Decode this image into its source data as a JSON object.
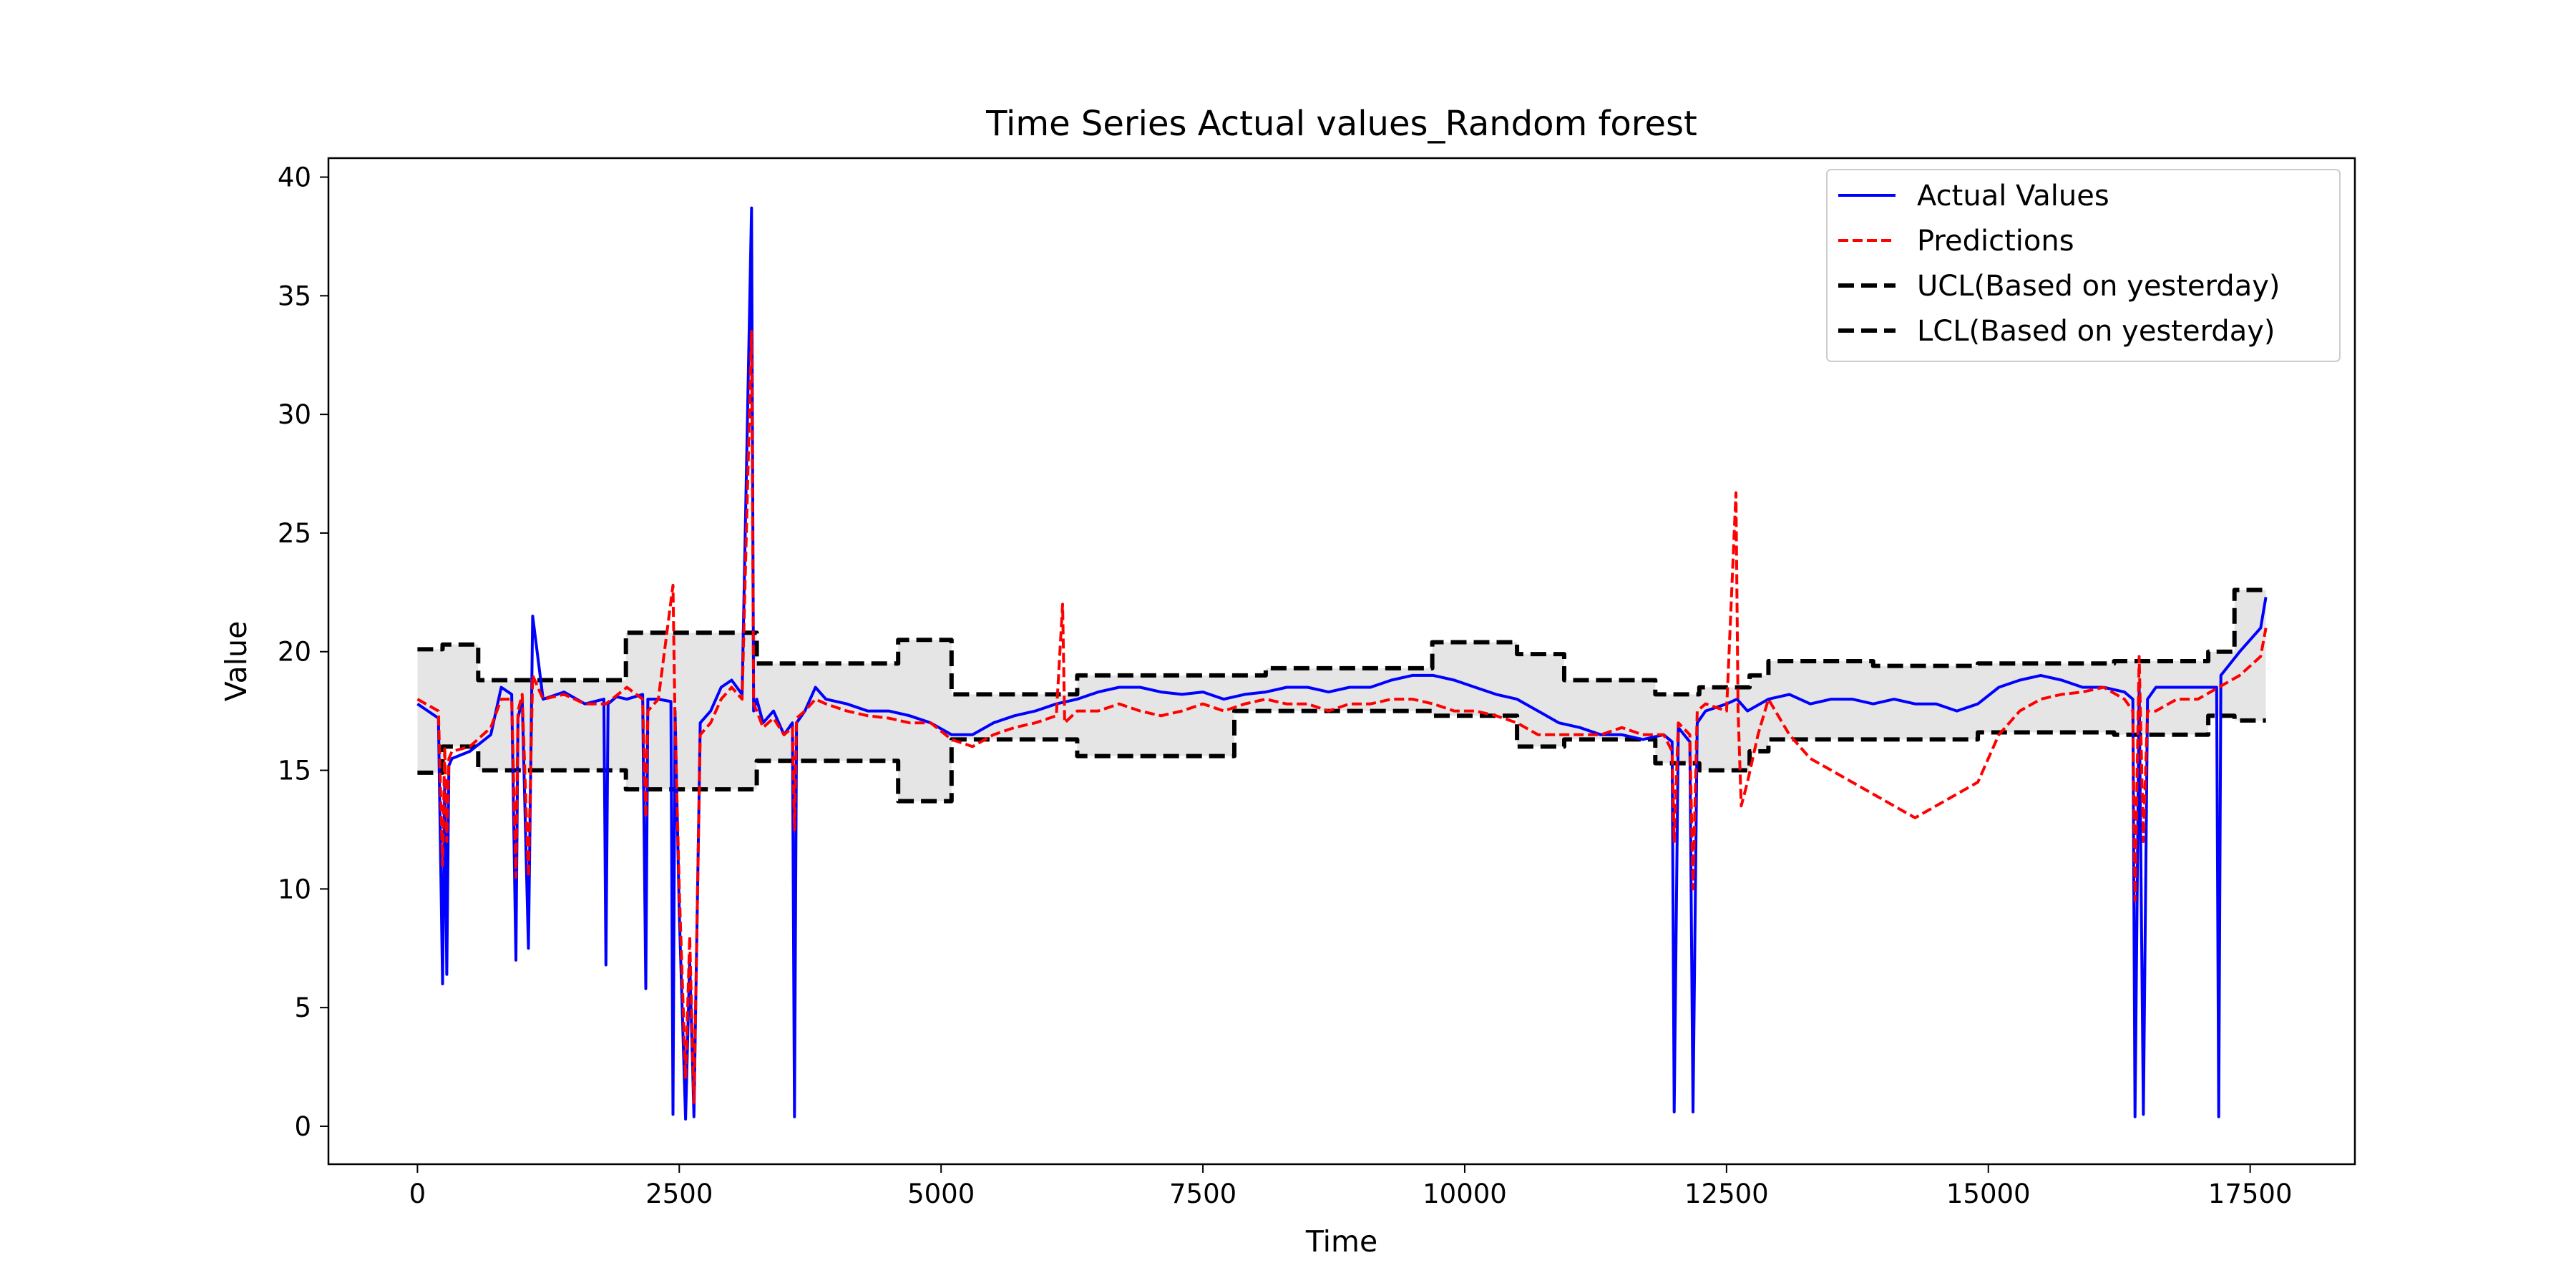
{
  "chart_data": {
    "type": "line",
    "title": "Time Series Actual values_Random forest",
    "xlabel": "Time",
    "ylabel": "Value",
    "xlim": [
      -850,
      18500
    ],
    "ylim": [
      -1.6,
      40.8
    ],
    "xticks": [
      0,
      2500,
      5000,
      7500,
      10000,
      12500,
      15000,
      17500
    ],
    "yticks": [
      0,
      5,
      10,
      15,
      20,
      25,
      30,
      35,
      40
    ],
    "legend_position": "upper right",
    "grid": false,
    "colors": {
      "actual": "#0000ff",
      "predictions": "#ff0000",
      "limits": "#000000",
      "band": "#e5e5e5"
    },
    "series": [
      {
        "name": "Actual Values",
        "style": "solid",
        "x": [
          0,
          200,
          240,
          260,
          280,
          300,
          330,
          500,
          700,
          800,
          900,
          940,
          960,
          1000,
          1060,
          1100,
          1200,
          1400,
          1600,
          1780,
          1800,
          1820,
          1900,
          2000,
          2150,
          2180,
          2200,
          2300,
          2420,
          2440,
          2460,
          2500,
          2560,
          2600,
          2640,
          2700,
          2800,
          2900,
          3000,
          3100,
          3190,
          3210,
          3240,
          3300,
          3400,
          3500,
          3580,
          3600,
          3620,
          3700,
          3800,
          3900,
          4100,
          4300,
          4500,
          4700,
          4900,
          5100,
          5300,
          5500,
          5700,
          5900,
          6100,
          6300,
          6500,
          6700,
          6900,
          7100,
          7300,
          7500,
          7700,
          7900,
          8100,
          8300,
          8500,
          8700,
          8900,
          9100,
          9300,
          9500,
          9700,
          9900,
          10100,
          10300,
          10500,
          10700,
          10900,
          11100,
          11300,
          11500,
          11700,
          11900,
          11980,
          12000,
          12040,
          12150,
          12180,
          12220,
          12300,
          12500,
          12600,
          12700,
          12900,
          13100,
          13300,
          13500,
          13700,
          13900,
          14100,
          14300,
          14500,
          14700,
          14900,
          15100,
          15300,
          15500,
          15700,
          15900,
          16100,
          16300,
          16380,
          16400,
          16440,
          16480,
          16520,
          16600,
          16800,
          17000,
          17180,
          17200,
          17220,
          17400,
          17600,
          17650
        ],
        "y": [
          17.8,
          17.2,
          6,
          14.5,
          6.4,
          15.2,
          15.5,
          15.8,
          16.5,
          18.5,
          18.2,
          7,
          17.2,
          18.0,
          7.5,
          21.5,
          18.0,
          18.3,
          17.8,
          18.0,
          6.8,
          17.8,
          18.1,
          18.0,
          18.2,
          5.8,
          18.0,
          18.0,
          17.9,
          0.5,
          17.5,
          9.0,
          0.3,
          7.0,
          0.4,
          17.0,
          17.5,
          18.5,
          18.8,
          18.2,
          38.7,
          17.5,
          18.0,
          17.0,
          17.5,
          16.5,
          17.0,
          0.4,
          17.0,
          17.5,
          18.5,
          18.0,
          17.8,
          17.5,
          17.5,
          17.3,
          17.0,
          16.5,
          16.5,
          17.0,
          17.3,
          17.5,
          17.8,
          18.0,
          18.3,
          18.5,
          18.5,
          18.3,
          18.2,
          18.3,
          18.0,
          18.2,
          18.3,
          18.5,
          18.5,
          18.3,
          18.5,
          18.5,
          18.8,
          19.0,
          19.0,
          18.8,
          18.5,
          18.2,
          18.0,
          17.5,
          17.0,
          16.8,
          16.5,
          16.5,
          16.3,
          16.5,
          16.2,
          0.6,
          16.8,
          16.2,
          0.6,
          17.0,
          17.5,
          17.8,
          18.0,
          17.5,
          18.0,
          18.2,
          17.8,
          18.0,
          18.0,
          17.8,
          18.0,
          17.8,
          17.8,
          17.5,
          17.8,
          18.5,
          18.8,
          19.0,
          18.8,
          18.5,
          18.5,
          18.3,
          18.0,
          0.4,
          18.5,
          0.5,
          18.0,
          18.5,
          18.5,
          18.5,
          18.5,
          0.4,
          19.0,
          20.0,
          21.0,
          22.3
        ]
      },
      {
        "name": "Predictions",
        "style": "dashed",
        "x": [
          0,
          200,
          240,
          260,
          280,
          300,
          330,
          500,
          700,
          800,
          900,
          940,
          960,
          1000,
          1060,
          1100,
          1200,
          1400,
          1600,
          1800,
          2000,
          2150,
          2180,
          2200,
          2300,
          2440,
          2460,
          2500,
          2560,
          2600,
          2640,
          2700,
          2800,
          2900,
          3000,
          3100,
          3190,
          3210,
          3240,
          3300,
          3400,
          3500,
          3580,
          3600,
          3620,
          3700,
          3800,
          3900,
          4100,
          4300,
          4500,
          4700,
          4900,
          5100,
          5300,
          5500,
          5700,
          5900,
          6100,
          6160,
          6180,
          6300,
          6500,
          6700,
          6900,
          7100,
          7300,
          7500,
          7700,
          7900,
          8100,
          8300,
          8500,
          8700,
          8900,
          9100,
          9300,
          9500,
          9700,
          9900,
          10100,
          10300,
          10500,
          10700,
          10900,
          11100,
          11300,
          11500,
          11700,
          11900,
          11980,
          12000,
          12040,
          12150,
          12180,
          12220,
          12300,
          12500,
          12590,
          12610,
          12640,
          12700,
          12800,
          12900,
          13100,
          13300,
          13500,
          13700,
          13900,
          14100,
          14300,
          14500,
          14700,
          14900,
          15100,
          15300,
          15500,
          15700,
          15900,
          16100,
          16300,
          16380,
          16400,
          16440,
          16480,
          16520,
          16600,
          16800,
          17000,
          17200,
          17400,
          17600,
          17650
        ],
        "y": [
          18.0,
          17.5,
          11,
          16.0,
          12,
          15.5,
          15.8,
          16.0,
          16.8,
          18.0,
          18.0,
          10.5,
          17.5,
          18.2,
          10.5,
          19.0,
          18.0,
          18.2,
          17.8,
          17.8,
          18.5,
          18.0,
          13.0,
          17.5,
          18.0,
          22.8,
          17.0,
          10.0,
          2.0,
          8.0,
          1.0,
          16.5,
          17.0,
          18.0,
          18.5,
          18.0,
          33.5,
          17.8,
          17.5,
          16.8,
          17.2,
          16.5,
          16.8,
          12.5,
          17.2,
          17.5,
          18.0,
          17.8,
          17.5,
          17.3,
          17.2,
          17.0,
          17.0,
          16.3,
          16.0,
          16.5,
          16.8,
          17.0,
          17.3,
          22.0,
          17.0,
          17.5,
          17.5,
          17.8,
          17.5,
          17.3,
          17.5,
          17.8,
          17.5,
          17.8,
          18.0,
          17.8,
          17.8,
          17.5,
          17.8,
          17.8,
          18.0,
          18.0,
          17.8,
          17.5,
          17.5,
          17.3,
          17.0,
          16.5,
          16.5,
          16.5,
          16.5,
          16.8,
          16.5,
          16.5,
          15.8,
          12.0,
          17.0,
          16.5,
          10.0,
          17.5,
          17.8,
          17.5,
          26.7,
          17.5,
          13.5,
          14.5,
          16.5,
          18.0,
          16.5,
          15.5,
          15.0,
          14.5,
          14.0,
          13.5,
          13.0,
          13.5,
          14.0,
          14.5,
          16.5,
          17.5,
          18.0,
          18.2,
          18.3,
          18.5,
          18.0,
          17.5,
          9.5,
          19.8,
          12.0,
          17.5,
          17.5,
          18.0,
          18.0,
          18.5,
          19.0,
          19.8,
          21.0
        ]
      },
      {
        "name": "UCL(Based on yesterday)",
        "style": "dashed",
        "x": [
          0,
          240,
          240,
          580,
          580,
          1990,
          1990,
          3240,
          3240,
          4590,
          4590,
          5100,
          5100,
          6300,
          6300,
          8100,
          8100,
          9690,
          9690,
          10500,
          10500,
          10950,
          10950,
          11820,
          11820,
          12240,
          12240,
          12720,
          12720,
          12900,
          12900,
          13900,
          13900,
          14900,
          14900,
          16200,
          16200,
          17100,
          17100,
          17350,
          17350,
          17650
        ],
        "y": [
          20.1,
          20.1,
          20.3,
          20.3,
          18.8,
          18.8,
          20.8,
          20.8,
          19.5,
          19.5,
          20.5,
          20.5,
          18.2,
          18.2,
          19.0,
          19.0,
          19.3,
          19.3,
          20.4,
          20.4,
          19.9,
          19.9,
          18.8,
          18.8,
          18.2,
          18.2,
          18.5,
          18.5,
          19.0,
          19.0,
          19.6,
          19.6,
          19.4,
          19.4,
          19.5,
          19.5,
          19.6,
          19.6,
          20.0,
          20.0,
          22.6,
          22.6
        ]
      },
      {
        "name": "LCL(Based on yesterday)",
        "style": "dashed",
        "x": [
          0,
          240,
          240,
          580,
          580,
          1990,
          1990,
          3240,
          3240,
          4590,
          4590,
          5100,
          5100,
          6300,
          6300,
          7800,
          7800,
          9690,
          9690,
          10500,
          10500,
          10950,
          10950,
          11820,
          11820,
          12240,
          12240,
          12720,
          12720,
          12900,
          12900,
          13900,
          13900,
          14900,
          14900,
          16200,
          16200,
          17100,
          17100,
          17350,
          17350,
          17650
        ],
        "y": [
          14.9,
          14.9,
          16.0,
          16.0,
          15.0,
          15.0,
          14.2,
          14.2,
          15.4,
          15.4,
          13.7,
          13.7,
          16.3,
          16.3,
          15.6,
          15.6,
          17.5,
          17.5,
          17.3,
          17.3,
          16.0,
          16.0,
          16.3,
          16.3,
          15.3,
          15.3,
          15.0,
          15.0,
          15.8,
          15.8,
          16.3,
          16.3,
          16.3,
          16.3,
          16.6,
          16.6,
          16.5,
          16.5,
          17.3,
          17.3,
          17.1,
          17.1
        ]
      }
    ],
    "band": {
      "between": [
        "UCL(Based on yesterday)",
        "LCL(Based on yesterday)"
      ]
    },
    "legend": [
      {
        "label": "Actual Values",
        "color": "#0000ff",
        "style": "solid"
      },
      {
        "label": "Predictions",
        "color": "#ff0000",
        "style": "dashed"
      },
      {
        "label": "UCL(Based on yesterday)",
        "color": "#000000",
        "style": "dashed"
      },
      {
        "label": "LCL(Based on yesterday)",
        "color": "#000000",
        "style": "dashed"
      }
    ]
  }
}
